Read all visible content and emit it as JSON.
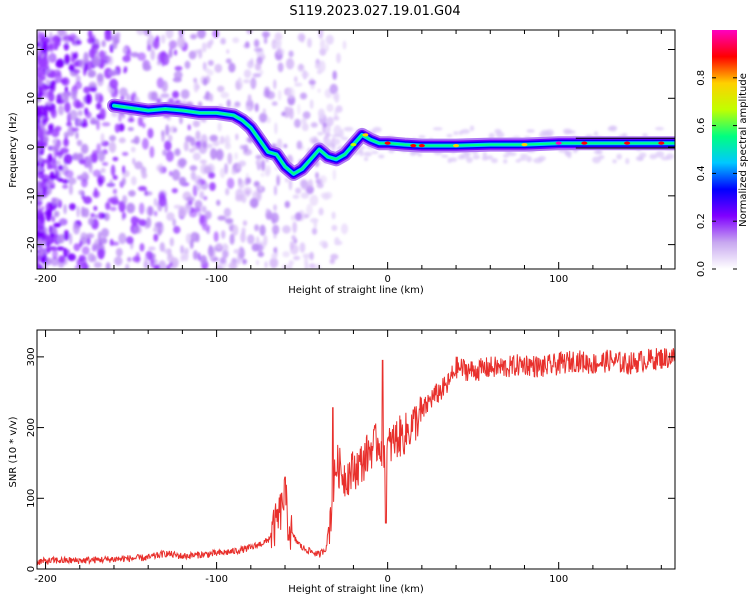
{
  "title": "S119.2023.027.19.01.G04",
  "chart_data": [
    {
      "type": "heatmap",
      "xlabel": "Height of straight line (km)",
      "ylabel": "Frequency (Hz)",
      "xlim": [
        -205,
        168
      ],
      "ylim": [
        -25,
        24
      ],
      "xticks": [
        -200,
        -100,
        0,
        100
      ],
      "yticks": [
        -20,
        -10,
        0,
        10,
        20
      ],
      "colorbar": {
        "label": "Normalized spectral amplitude",
        "ticks": [
          0.0,
          0.2,
          0.4,
          0.6,
          0.8
        ],
        "range": [
          0,
          1
        ],
        "colormap": [
          "#ffffff",
          "#c8a8f0",
          "#8000ff",
          "#0000ff",
          "#00c8ff",
          "#00ff80",
          "#c0ff00",
          "#ffd000",
          "#ff0000",
          "#ff00c0"
        ]
      },
      "ridge": {
        "x": [
          -160,
          -150,
          -140,
          -130,
          -120,
          -110,
          -100,
          -90,
          -85,
          -80,
          -75,
          -70,
          -65,
          -60,
          -55,
          -50,
          -45,
          -40,
          -35,
          -30,
          -25,
          -20,
          -15,
          -10,
          -5,
          0,
          10,
          20,
          40,
          60,
          80,
          100,
          110,
          120,
          140,
          168
        ],
        "y": [
          8.5,
          8.0,
          7.5,
          7.8,
          7.5,
          7.0,
          7.0,
          6.5,
          5.5,
          4.0,
          1.5,
          -1.0,
          -1.5,
          -4.0,
          -5.5,
          -4.5,
          -2.5,
          -0.5,
          -2.0,
          -2.5,
          -1.5,
          0.5,
          2.5,
          1.5,
          0.8,
          0.8,
          0.5,
          0.3,
          0.3,
          0.5,
          0.5,
          0.8,
          0.8,
          0.8,
          0.8,
          0.8
        ]
      }
    },
    {
      "type": "line",
      "xlabel": "Height of straight line (km)",
      "ylabel": "SNR (10 * v/v)",
      "xlim": [
        -205,
        168
      ],
      "ylim": [
        0,
        338
      ],
      "xticks": [
        -200,
        -100,
        0,
        100
      ],
      "yticks": [
        0,
        100,
        200,
        300
      ],
      "color": "#e8302c",
      "series": [
        {
          "x": [
            -205,
            -195,
            -180,
            -160,
            -140,
            -130,
            -120,
            -110,
            -100,
            -90,
            -80,
            -75,
            -70,
            -66,
            -62,
            -60,
            -58,
            -55,
            -50,
            -45,
            -40,
            -36,
            -33,
            -30,
            -25,
            -20,
            -15,
            -10,
            -5,
            -2,
            0,
            5,
            10,
            15,
            20,
            25,
            30,
            35,
            40,
            50,
            60,
            70,
            80,
            90,
            100,
            110,
            120,
            130,
            140,
            150,
            160,
            168
          ],
          "y": [
            10,
            12,
            12,
            14,
            16,
            22,
            18,
            20,
            22,
            25,
            30,
            35,
            40,
            60,
            85,
            110,
            60,
            45,
            30,
            25,
            20,
            30,
            80,
            150,
            130,
            140,
            150,
            170,
            180,
            165,
            170,
            185,
            190,
            205,
            220,
            240,
            250,
            260,
            285,
            280,
            285,
            285,
            290,
            285,
            290,
            295,
            290,
            295,
            290,
            295,
            298,
            300
          ]
        }
      ],
      "spikes": [
        {
          "x": -60,
          "y": 130
        },
        {
          "x": -32,
          "y": 228
        },
        {
          "x": -3,
          "y": 295
        },
        {
          "x": -1,
          "y": 65
        }
      ]
    }
  ]
}
